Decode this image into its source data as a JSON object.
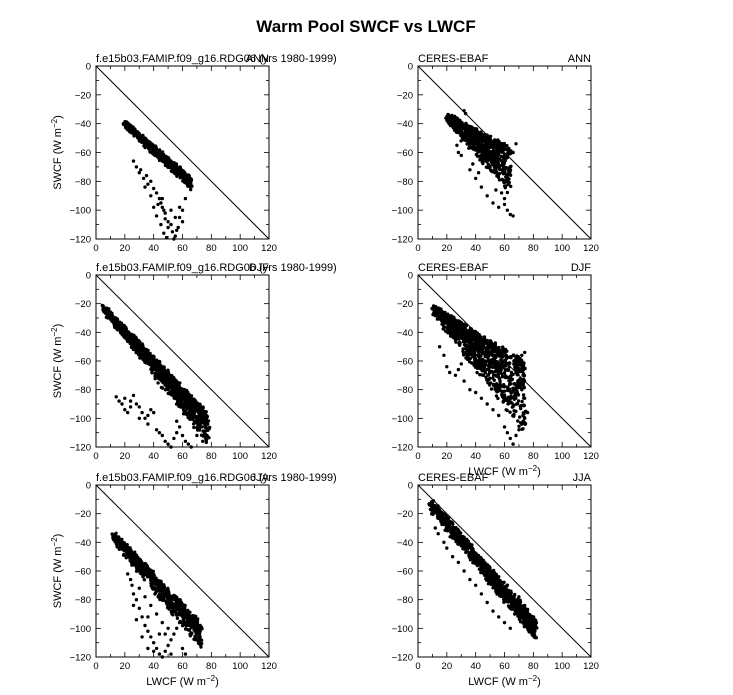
{
  "figure": {
    "title": "Warm Pool SWCF vs LWCF"
  },
  "chart_data": [
    {
      "type": "scatter",
      "left_title": "f.e15b03.FAMIP.f09_g16.RDG06 (yrs 1980-1999)",
      "right_title": "ANN",
      "xlabel": "",
      "ylabel": "SWCF (W m",
      "ylabel_sup": "-2",
      "ylabel_close": ")",
      "xlim": [
        0,
        120
      ],
      "ylim": [
        -120,
        0
      ],
      "xticks": [
        0,
        20,
        40,
        60,
        80,
        100,
        120
      ],
      "yticks": [
        0,
        -20,
        -40,
        -60,
        -80,
        -100,
        -120
      ],
      "diagonal": true,
      "seed": 11,
      "band": {
        "xstart": 19,
        "xend": 66,
        "yupper0": -39,
        "ylower0": -40,
        "yupper1": -79,
        "ylower1": -84,
        "count": 780
      },
      "scatter_points": [
        [
          28,
          -70
        ],
        [
          30,
          -74
        ],
        [
          33,
          -78
        ],
        [
          35,
          -76
        ],
        [
          38,
          -80
        ],
        [
          40,
          -85
        ],
        [
          42,
          -88
        ],
        [
          44,
          -92
        ],
        [
          45,
          -95
        ],
        [
          46,
          -98
        ],
        [
          47,
          -100
        ],
        [
          48,
          -102
        ],
        [
          48,
          -106
        ],
        [
          50,
          -108
        ],
        [
          50,
          -112
        ],
        [
          52,
          -110
        ],
        [
          53,
          -115
        ],
        [
          55,
          -118
        ],
        [
          56,
          -114
        ],
        [
          57,
          -112
        ],
        [
          58,
          -105
        ],
        [
          60,
          -100
        ],
        [
          62,
          -92
        ],
        [
          38,
          -90
        ],
        [
          40,
          -98
        ],
        [
          42,
          -104
        ],
        [
          45,
          -110
        ],
        [
          47,
          -116
        ],
        [
          49,
          -119
        ],
        [
          43,
          -96
        ],
        [
          55,
          -105
        ],
        [
          52,
          -100
        ],
        [
          34,
          -84
        ],
        [
          36,
          -82
        ],
        [
          31,
          -72
        ],
        [
          26,
          -66
        ],
        [
          58,
          -98
        ],
        [
          60,
          -108
        ],
        [
          54,
          -120
        ],
        [
          46,
          -92
        ]
      ]
    },
    {
      "type": "scatter",
      "left_title": "CERES-EBAF",
      "right_title": "ANN",
      "xlabel": "",
      "ylabel": "",
      "ylabel_sup": "",
      "ylabel_close": "",
      "xlim": [
        0,
        120
      ],
      "ylim": [
        -120,
        0
      ],
      "xticks": [
        0,
        20,
        40,
        60,
        80,
        100,
        120
      ],
      "yticks": [
        0,
        -20,
        -40,
        -60,
        -80,
        -100,
        -120
      ],
      "diagonal": true,
      "seed": 23,
      "band": {
        "xstart": 20,
        "xend": 64,
        "yupper0": -34,
        "ylower0": -38,
        "yupper1": -58,
        "ylower1": -88,
        "count": 680
      },
      "scatter_points": [
        [
          32,
          -31
        ],
        [
          33,
          -33
        ],
        [
          25,
          -42
        ],
        [
          27,
          -55
        ],
        [
          28,
          -60
        ],
        [
          30,
          -62
        ],
        [
          36,
          -72
        ],
        [
          40,
          -78
        ],
        [
          44,
          -84
        ],
        [
          48,
          -90
        ],
        [
          52,
          -95
        ],
        [
          56,
          -98
        ],
        [
          60,
          -96
        ],
        [
          62,
          -100
        ],
        [
          64,
          -103
        ],
        [
          66,
          -104
        ],
        [
          58,
          -88
        ],
        [
          62,
          -80
        ],
        [
          64,
          -70
        ],
        [
          66,
          -60
        ],
        [
          68,
          -54
        ],
        [
          45,
          -66
        ],
        [
          50,
          -70
        ],
        [
          55,
          -76
        ],
        [
          38,
          -68
        ],
        [
          42,
          -74
        ],
        [
          60,
          -92
        ],
        [
          54,
          -86
        ]
      ]
    },
    {
      "type": "scatter",
      "left_title": "f.e15b03.FAMIP.f09_g16.RDG06 (yrs 1980-1999)",
      "right_title": "DJF",
      "xlabel": "",
      "ylabel": "SWCF (W m",
      "ylabel_sup": "-2",
      "ylabel_close": ")",
      "xlim": [
        0,
        120
      ],
      "ylim": [
        -120,
        0
      ],
      "xticks": [
        0,
        20,
        40,
        60,
        80,
        100,
        120
      ],
      "yticks": [
        0,
        -20,
        -40,
        -60,
        -80,
        -100,
        -120
      ],
      "diagonal": true,
      "seed": 37,
      "band": {
        "xstart": 5,
        "xend": 78,
        "yupper0": -22,
        "ylower0": -24,
        "yupper1": -98,
        "ylower1": -118,
        "count": 1100
      },
      "scatter_points": [
        [
          14,
          -85
        ],
        [
          16,
          -88
        ],
        [
          18,
          -90
        ],
        [
          20,
          -94
        ],
        [
          22,
          -96
        ],
        [
          24,
          -88
        ],
        [
          26,
          -84
        ],
        [
          28,
          -90
        ],
        [
          30,
          -92
        ],
        [
          32,
          -96
        ],
        [
          34,
          -100
        ],
        [
          36,
          -98
        ],
        [
          38,
          -94
        ],
        [
          40,
          -96
        ],
        [
          42,
          -108
        ],
        [
          44,
          -110
        ],
        [
          46,
          -112
        ],
        [
          48,
          -116
        ],
        [
          50,
          -118
        ],
        [
          52,
          -120
        ],
        [
          54,
          -114
        ],
        [
          56,
          -110
        ],
        [
          58,
          -106
        ],
        [
          60,
          -112
        ],
        [
          62,
          -116
        ],
        [
          64,
          -118
        ],
        [
          66,
          -120
        ],
        [
          70,
          -112
        ],
        [
          74,
          -116
        ],
        [
          76,
          -114
        ],
        [
          20,
          -86
        ],
        [
          24,
          -92
        ],
        [
          30,
          -100
        ],
        [
          36,
          -104
        ],
        [
          56,
          -102
        ]
      ]
    },
    {
      "type": "scatter",
      "left_title": "CERES-EBAF",
      "right_title": "DJF",
      "xlabel": "LWCF (W m",
      "xlabel_sup": "-2",
      "xlabel_close": ")",
      "ylabel": "",
      "ylabel_sup": "",
      "ylabel_close": "",
      "xlim": [
        0,
        120
      ],
      "ylim": [
        -120,
        0
      ],
      "xticks": [
        0,
        20,
        40,
        60,
        80,
        100,
        120
      ],
      "yticks": [
        0,
        -20,
        -40,
        -60,
        -80,
        -100,
        -120
      ],
      "diagonal": true,
      "seed": 51,
      "band": {
        "xstart": 10,
        "xend": 74,
        "yupper0": -22,
        "ylower0": -26,
        "yupper1": -62,
        "ylower1": -110,
        "count": 1000
      },
      "scatter_points": [
        [
          15,
          -50
        ],
        [
          18,
          -56
        ],
        [
          20,
          -64
        ],
        [
          22,
          -68
        ],
        [
          26,
          -70
        ],
        [
          28,
          -66
        ],
        [
          30,
          -62
        ],
        [
          32,
          -74
        ],
        [
          36,
          -80
        ],
        [
          40,
          -82
        ],
        [
          44,
          -86
        ],
        [
          48,
          -90
        ],
        [
          52,
          -94
        ],
        [
          56,
          -98
        ],
        [
          60,
          -106
        ],
        [
          62,
          -110
        ],
        [
          64,
          -114
        ],
        [
          66,
          -118
        ],
        [
          68,
          -112
        ],
        [
          70,
          -108
        ],
        [
          72,
          -104
        ],
        [
          74,
          -100
        ],
        [
          76,
          -96
        ],
        [
          74,
          -86
        ],
        [
          72,
          -80
        ],
        [
          70,
          -74
        ],
        [
          68,
          -68
        ],
        [
          70,
          -62
        ],
        [
          72,
          -56
        ],
        [
          74,
          -54
        ]
      ]
    },
    {
      "type": "scatter",
      "left_title": "f.e15b03.FAMIP.f09_g16.RDG06 (yrs 1980-1999)",
      "right_title": "JJA",
      "xlabel": "LWCF (W m",
      "xlabel_sup": "-2",
      "xlabel_close": ")",
      "ylabel": "SWCF (W m",
      "ylabel_sup": "-2",
      "ylabel_close": ")",
      "xlim": [
        0,
        120
      ],
      "ylim": [
        -120,
        0
      ],
      "xticks": [
        0,
        20,
        40,
        60,
        80,
        100,
        120
      ],
      "yticks": [
        0,
        -20,
        -40,
        -60,
        -80,
        -100,
        -120
      ],
      "diagonal": true,
      "seed": 67,
      "band": {
        "xstart": 12,
        "xend": 73,
        "yupper0": -34,
        "ylower0": -38,
        "yupper1": -98,
        "ylower1": -114,
        "count": 720
      },
      "scatter_points": [
        [
          22,
          -62
        ],
        [
          24,
          -66
        ],
        [
          25,
          -70
        ],
        [
          26,
          -76
        ],
        [
          28,
          -80
        ],
        [
          30,
          -86
        ],
        [
          32,
          -92
        ],
        [
          34,
          -98
        ],
        [
          36,
          -102
        ],
        [
          38,
          -106
        ],
        [
          40,
          -110
        ],
        [
          42,
          -114
        ],
        [
          44,
          -118
        ],
        [
          46,
          -120
        ],
        [
          48,
          -116
        ],
        [
          50,
          -112
        ],
        [
          52,
          -108
        ],
        [
          54,
          -104
        ],
        [
          56,
          -100
        ],
        [
          58,
          -96
        ],
        [
          30,
          -72
        ],
        [
          34,
          -78
        ],
        [
          38,
          -84
        ],
        [
          42,
          -90
        ],
        [
          46,
          -96
        ],
        [
          50,
          -100
        ],
        [
          36,
          -92
        ],
        [
          44,
          -104
        ],
        [
          40,
          -116
        ],
        [
          48,
          -104
        ],
        [
          26,
          -84
        ],
        [
          32,
          -106
        ],
        [
          36,
          -114
        ],
        [
          28,
          -94
        ],
        [
          52,
          -118
        ],
        [
          60,
          -114
        ],
        [
          62,
          -118
        ]
      ]
    },
    {
      "type": "scatter",
      "left_title": "CERES-EBAF",
      "right_title": "JJA",
      "xlabel": "LWCF (W m",
      "xlabel_sup": "-2",
      "xlabel_close": ")",
      "ylabel": "",
      "ylabel_sup": "",
      "ylabel_close": "",
      "xlim": [
        0,
        120
      ],
      "ylim": [
        -120,
        0
      ],
      "xticks": [
        0,
        20,
        40,
        60,
        80,
        100,
        120
      ],
      "yticks": [
        0,
        -20,
        -40,
        -60,
        -80,
        -100,
        -120
      ],
      "diagonal": true,
      "seed": 83,
      "band": {
        "xstart": 8,
        "xend": 82,
        "yupper0": -10,
        "ylower0": -16,
        "yupper1": -96,
        "ylower1": -108,
        "count": 1000
      },
      "scatter_points": [
        [
          12,
          -30
        ],
        [
          14,
          -34
        ],
        [
          18,
          -40
        ],
        [
          20,
          -44
        ],
        [
          24,
          -50
        ],
        [
          28,
          -54
        ],
        [
          32,
          -60
        ],
        [
          36,
          -66
        ],
        [
          40,
          -70
        ],
        [
          44,
          -76
        ],
        [
          48,
          -82
        ],
        [
          52,
          -88
        ],
        [
          56,
          -92
        ],
        [
          60,
          -96
        ],
        [
          64,
          -100
        ],
        [
          20,
          -26
        ],
        [
          24,
          -30
        ],
        [
          28,
          -34
        ],
        [
          32,
          -38
        ],
        [
          40,
          -48
        ],
        [
          48,
          -56
        ],
        [
          56,
          -64
        ],
        [
          62,
          -70
        ],
        [
          70,
          -78
        ],
        [
          74,
          -84
        ]
      ]
    }
  ]
}
